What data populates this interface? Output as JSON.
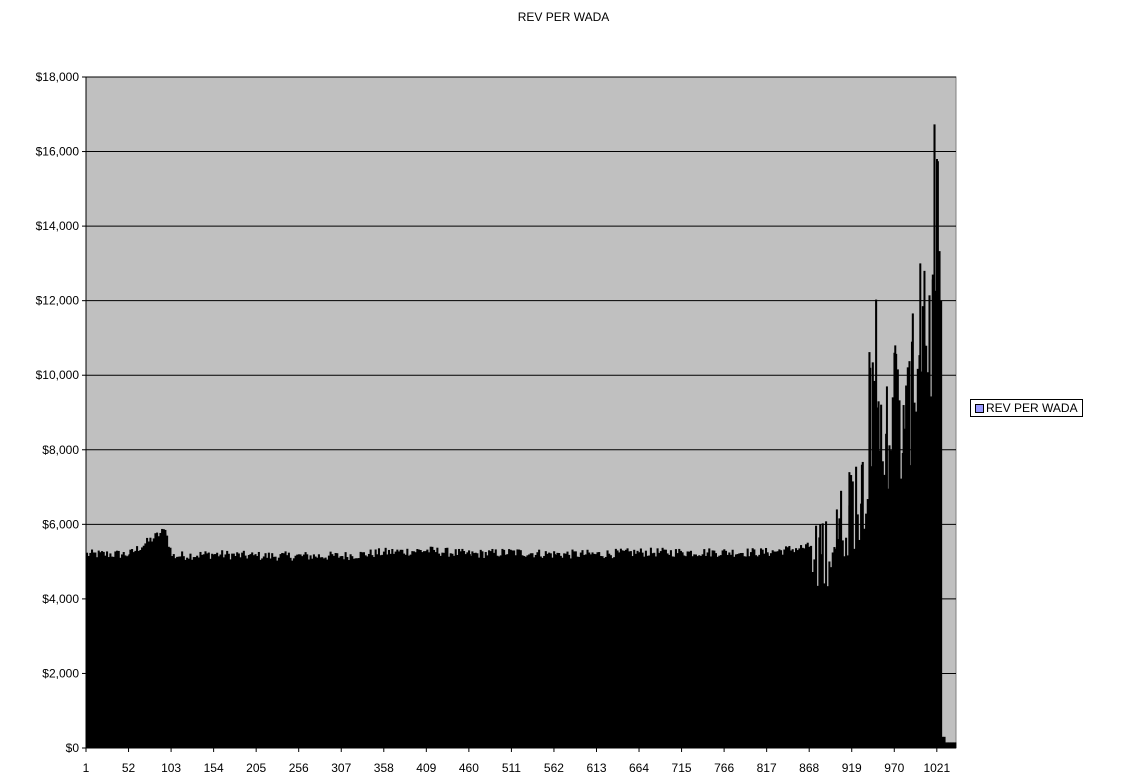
{
  "chart_data": {
    "type": "bar",
    "title": "REV PER WADA",
    "xlabel": "",
    "ylabel": "",
    "ylim": [
      0,
      18000
    ],
    "y_ticks": [
      0,
      2000,
      4000,
      6000,
      8000,
      10000,
      12000,
      14000,
      16000,
      18000
    ],
    "y_tick_labels": [
      "$0",
      "$2,000",
      "$4,000",
      "$6,000",
      "$8,000",
      "$10,000",
      "$12,000",
      "$14,000",
      "$16,000",
      "$18,000"
    ],
    "x_range": [
      1,
      1044
    ],
    "x_tick_labels": [
      "1",
      "52",
      "103",
      "154",
      "205",
      "256",
      "307",
      "358",
      "409",
      "460",
      "511",
      "562",
      "613",
      "664",
      "715",
      "766",
      "817",
      "868",
      "919",
      "970",
      "1021"
    ],
    "x_tick_values": [
      1,
      52,
      103,
      154,
      205,
      256,
      307,
      358,
      409,
      460,
      511,
      562,
      613,
      664,
      715,
      766,
      817,
      868,
      919,
      970,
      1021
    ],
    "grid": "horizontal",
    "legend_position": "right",
    "series": [
      {
        "name": "REV PER WADA",
        "description_points": [
          {
            "x": 1,
            "y": 5200
          },
          {
            "x": 52,
            "y": 5200
          },
          {
            "x": 95,
            "y": 5850
          },
          {
            "x": 103,
            "y": 5150
          },
          {
            "x": 154,
            "y": 5200
          },
          {
            "x": 205,
            "y": 5150
          },
          {
            "x": 256,
            "y": 5150
          },
          {
            "x": 307,
            "y": 5150
          },
          {
            "x": 358,
            "y": 5250
          },
          {
            "x": 409,
            "y": 5300
          },
          {
            "x": 460,
            "y": 5200
          },
          {
            "x": 511,
            "y": 5250
          },
          {
            "x": 562,
            "y": 5200
          },
          {
            "x": 613,
            "y": 5200
          },
          {
            "x": 664,
            "y": 5250
          },
          {
            "x": 715,
            "y": 5250
          },
          {
            "x": 766,
            "y": 5250
          },
          {
            "x": 817,
            "y": 5250
          },
          {
            "x": 868,
            "y": 5400
          },
          {
            "x": 880,
            "y": 6000
          },
          {
            "x": 900,
            "y": 6400
          },
          {
            "x": 915,
            "y": 7400
          },
          {
            "x": 930,
            "y": 7600
          },
          {
            "x": 940,
            "y": 10200
          },
          {
            "x": 950,
            "y": 9300
          },
          {
            "x": 960,
            "y": 9700
          },
          {
            "x": 970,
            "y": 10800
          },
          {
            "x": 980,
            "y": 9200
          },
          {
            "x": 990,
            "y": 10900
          },
          {
            "x": 1000,
            "y": 13000
          },
          {
            "x": 1005,
            "y": 12800
          },
          {
            "x": 1015,
            "y": 12700
          },
          {
            "x": 1020,
            "y": 15800
          },
          {
            "x": 1025,
            "y": 12000
          }
        ],
        "color": "#000000",
        "legend_swatch_color": "#9999ff"
      }
    ]
  },
  "colors": {
    "plot_bg": "#c0c0c0",
    "bar": "#000000",
    "grid": "#000000"
  }
}
